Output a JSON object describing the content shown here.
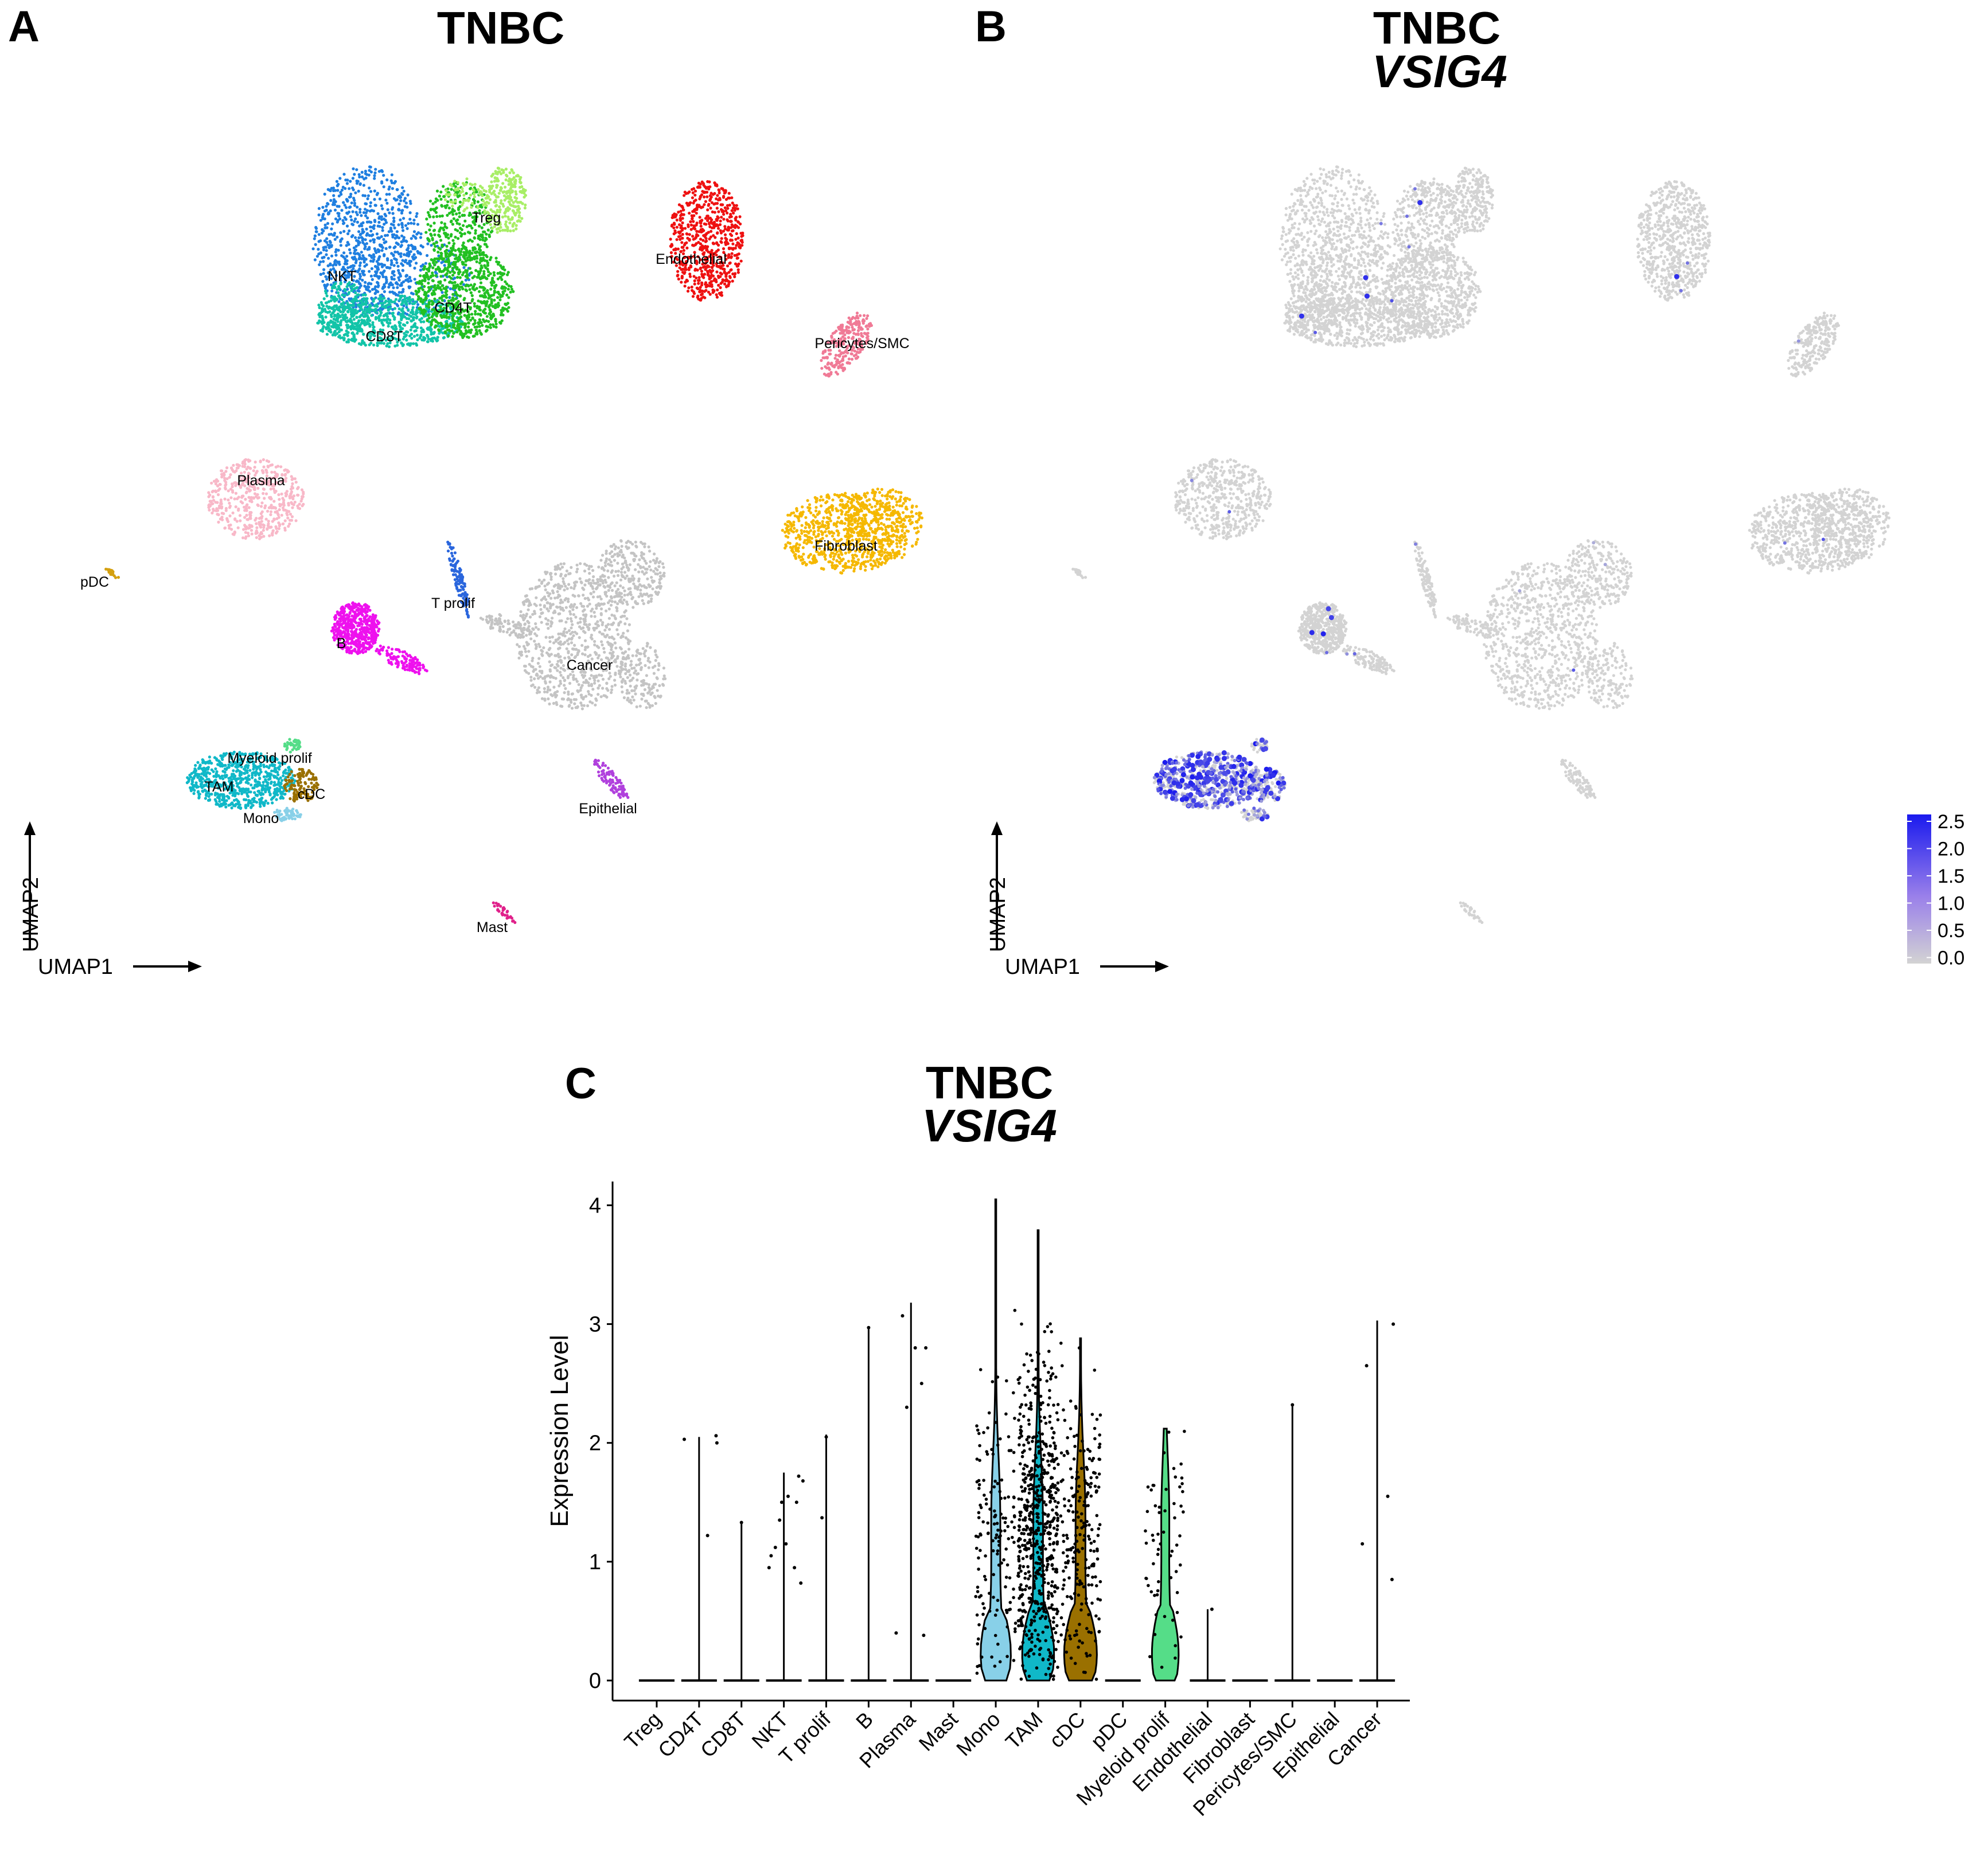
{
  "panels": {
    "A": {
      "letter": "A",
      "title": "TNBC",
      "xlabel": "UMAP1",
      "ylabel": "UMAP2",
      "clusters": [
        {
          "label": "NKT",
          "color": "#1f7fe0"
        },
        {
          "label": "CD8T",
          "color": "#12c4a8"
        },
        {
          "label": "CD4T",
          "color": "#22c022"
        },
        {
          "label": "Treg",
          "color": "#a8ee66"
        },
        {
          "label": "Endothelial",
          "color": "#ee1111"
        },
        {
          "label": "Pericytes/SMC",
          "color": "#f07a96"
        },
        {
          "label": "Plasma",
          "color": "#f8b8c8"
        },
        {
          "label": "Fibroblast",
          "color": "#f5b800"
        },
        {
          "label": "pDC",
          "color": "#d4a010"
        },
        {
          "label": "T prolif",
          "color": "#2a66dd"
        },
        {
          "label": "B",
          "color": "#ee11ee"
        },
        {
          "label": "Cancer",
          "color": "#c4c4c4"
        },
        {
          "label": "Myeloid prolif",
          "color": "#55dd88"
        },
        {
          "label": "TAM",
          "color": "#10b8c8"
        },
        {
          "label": "cDC",
          "color": "#9a7000"
        },
        {
          "label": "Mono",
          "color": "#88d0e8"
        },
        {
          "label": "Epithelial",
          "color": "#b040dd"
        },
        {
          "label": "Mast",
          "color": "#e0208a"
        }
      ]
    },
    "B": {
      "letter": "B",
      "title": "TNBC",
      "gene": "VSIG4",
      "xlabel": "UMAP1",
      "ylabel": "UMAP2",
      "legend": {
        "ticks": [
          "2.5",
          "2.0",
          "1.5",
          "1.0",
          "0.5",
          "0.0"
        ],
        "low_color": "#d3d3d3",
        "high_color": "#1a1aee"
      }
    },
    "C": {
      "letter": "C",
      "title": "TNBC",
      "gene": "VSIG4"
    }
  },
  "chart_data": [
    {
      "type": "scatter",
      "title": "TNBC",
      "xlabel": "UMAP1",
      "ylabel": "UMAP2",
      "description_of_groups": "UMAP embedding colored by cell type",
      "groups": [
        "Treg",
        "CD4T",
        "CD8T",
        "NKT",
        "T prolif",
        "B",
        "Plasma",
        "Mast",
        "Mono",
        "TAM",
        "cDC",
        "pDC",
        "Myeloid prolif",
        "Endothelial",
        "Fibroblast",
        "Pericytes/SMC",
        "Epithelial",
        "Cancer"
      ]
    },
    {
      "type": "scatter",
      "title": "TNBC VSIG4",
      "xlabel": "UMAP1",
      "ylabel": "UMAP2",
      "colorbar": {
        "min": 0.0,
        "max": 2.5,
        "ticks": [
          0.0,
          0.5,
          1.0,
          1.5,
          2.0,
          2.5
        ]
      }
    },
    {
      "type": "violin",
      "title": "TNBC",
      "subtitle": "VSIG4",
      "xlabel": "",
      "ylabel": "Expression Level",
      "ylim": [
        0,
        4.2
      ],
      "yticks": [
        0,
        1,
        2,
        3,
        4
      ],
      "categories": [
        "Treg",
        "CD4T",
        "CD8T",
        "NKT",
        "T prolif",
        "B",
        "Plasma",
        "Mast",
        "Mono",
        "TAM",
        "cDC",
        "pDC",
        "Myeloid prolif",
        "Endothelial",
        "Fibroblast",
        "Pericytes/SMC",
        "Epithelial",
        "Cancer"
      ],
      "colors": [
        "#a8ee66",
        "#22c022",
        "#12c4a8",
        "#1f7fe0",
        "#2a66dd",
        "#ee11ee",
        "#f8b8c8",
        "#e0208a",
        "#88d0e8",
        "#10b8c8",
        "#9a7000",
        "#d4a010",
        "#55dd88",
        "#ee1111",
        "#f5b800",
        "#f07a96",
        "#b040dd",
        "#c4c4c4"
      ],
      "max_values": [
        0,
        2.05,
        1.33,
        1.75,
        2.07,
        2.97,
        3.18,
        0,
        4.05,
        3.79,
        2.88,
        0,
        2.12,
        0.6,
        0,
        2.32,
        0,
        3.03
      ],
      "body_width": [
        0,
        0,
        0,
        0,
        0,
        0,
        0,
        0,
        0.85,
        0.9,
        0.92,
        0,
        0.75,
        0,
        0,
        0,
        0,
        0
      ],
      "points": [
        [],
        [
          [
            -0.35,
            2.03
          ],
          [
            0.2,
            1.22
          ],
          [
            0.4,
            2.06
          ],
          [
            0.42,
            2.0
          ]
        ],
        [
          [
            0.0,
            1.33
          ]
        ],
        [
          [
            -0.35,
            0.95
          ],
          [
            -0.3,
            1.05
          ],
          [
            -0.2,
            1.12
          ],
          [
            -0.1,
            1.35
          ],
          [
            0.05,
            1.15
          ],
          [
            0.1,
            1.55
          ],
          [
            0.25,
            0.95
          ],
          [
            0.3,
            1.5
          ],
          [
            0.35,
            1.72
          ],
          [
            0.4,
            0.82
          ],
          [
            0.45,
            1.68
          ],
          [
            -0.05,
            1.5
          ]
        ],
        [
          [
            0.0,
            2.05
          ],
          [
            -0.1,
            1.37
          ]
        ],
        [
          [
            0.0,
            2.97
          ]
        ],
        [
          [
            -0.2,
            3.07
          ],
          [
            -0.1,
            2.3
          ],
          [
            0.1,
            2.8
          ],
          [
            0.25,
            2.5
          ],
          [
            0.35,
            2.8
          ],
          [
            0.3,
            0.38
          ],
          [
            -0.35,
            0.4
          ]
        ],
        [],
        [],
        [],
        [],
        [],
        [],
        [
          [
            0.1,
            0.6
          ]
        ],
        [],
        [
          [
            0.0,
            2.32
          ]
        ],
        [],
        [
          [
            -0.35,
            1.15
          ],
          [
            -0.25,
            2.65
          ],
          [
            0.25,
            1.55
          ],
          [
            0.35,
            0.85
          ],
          [
            0.38,
            3.0
          ]
        ]
      ],
      "jitter_counts": [
        0,
        0,
        0,
        0,
        0,
        0,
        0,
        0,
        150,
        600,
        220,
        0,
        60,
        0,
        0,
        0,
        0,
        0
      ]
    }
  ]
}
